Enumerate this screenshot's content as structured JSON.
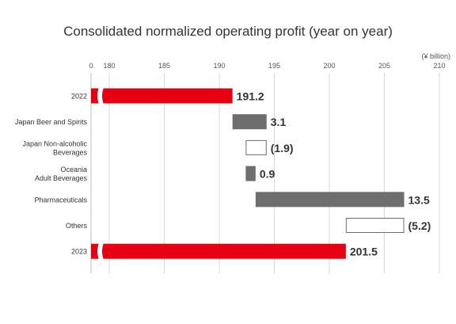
{
  "chart_data": {
    "type": "bar",
    "subtype": "waterfall",
    "title": "Consolidated normalized operating profit (year on year)",
    "unit_label": "(¥ billion)",
    "xlim": [
      180,
      210
    ],
    "axis_break": true,
    "x_ticks": [
      0,
      180,
      185,
      190,
      195,
      200,
      205,
      210
    ],
    "grid": true,
    "orientation": "horizontal",
    "colors": {
      "total": "#e60012",
      "increase": "#6e6e6e",
      "decrease_fill": "#ffffff",
      "decrease_stroke": "#6e6e6e",
      "axis": "#bbbbbb",
      "grid": "#d9d9d9"
    },
    "bars": [
      {
        "category": [
          "2022"
        ],
        "kind": "total",
        "start": 0,
        "end": 191.2,
        "value": 191.2,
        "label": "191.2"
      },
      {
        "category": [
          "Japan Beer and Spirits"
        ],
        "kind": "increase",
        "start": 191.2,
        "end": 194.3,
        "value": 3.1,
        "label": "3.1"
      },
      {
        "category": [
          "Japan Non-alcoholic",
          "Beverages"
        ],
        "kind": "decrease",
        "start": 194.3,
        "end": 192.4,
        "value": -1.9,
        "label": "(1.9)"
      },
      {
        "category": [
          "Oceania",
          "Adult Beverages"
        ],
        "kind": "increase",
        "start": 192.4,
        "end": 193.3,
        "value": 0.9,
        "label": "0.9"
      },
      {
        "category": [
          "Pharmaceuticals"
        ],
        "kind": "increase",
        "start": 193.3,
        "end": 206.8,
        "value": 13.5,
        "label": "13.5"
      },
      {
        "category": [
          "Others"
        ],
        "kind": "decrease",
        "start": 206.8,
        "end": 201.5,
        "value": -5.2,
        "label": "(5.2)"
      },
      {
        "category": [
          "2023"
        ],
        "kind": "total",
        "start": 0,
        "end": 201.5,
        "value": 201.5,
        "label": "201.5"
      }
    ]
  }
}
